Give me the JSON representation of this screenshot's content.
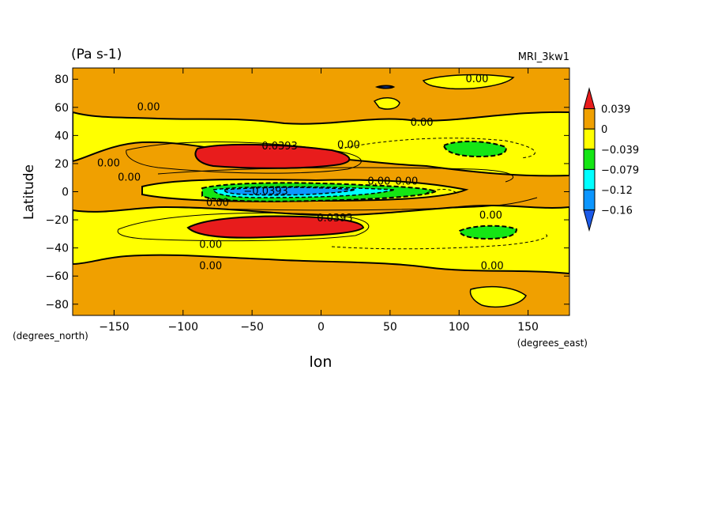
{
  "chart_data": {
    "type": "heatmap",
    "subtype": "filled-contour",
    "units_label": "(Pa s-1)",
    "model_label": "MRI_3kw1",
    "xlabel": "lon",
    "ylabel": "Latitude",
    "x_unit": "(degrees_east)",
    "y_unit": "(degrees_north)",
    "xlim": [
      -180,
      180
    ],
    "ylim": [
      -88,
      88
    ],
    "x_ticks": [
      -150,
      -100,
      -50,
      0,
      50,
      100,
      150
    ],
    "y_ticks": [
      80,
      60,
      40,
      20,
      0,
      -20,
      -40,
      -60,
      -80
    ],
    "x_tick_labels": [
      "−150",
      "−100",
      "−50",
      "0",
      "50",
      "100",
      "150"
    ],
    "y_tick_labels": [
      "80",
      "60",
      "40",
      "20",
      "0",
      "−20",
      "−40",
      "−60",
      "−80"
    ],
    "colorbar": {
      "labels": [
        "0.039",
        "0",
        "−0.039",
        "−0.079",
        "−0.12",
        "−0.16"
      ],
      "colors": [
        "#e81c1c",
        "#f0a000",
        "#ffff00",
        "#14e614",
        "#00ffff",
        "#0c96ff",
        "#1c5ae8"
      ]
    },
    "contour_labels": [
      {
        "text": "0.00",
        "lon": 113,
        "lat": 78
      },
      {
        "text": "0.00",
        "lon": -125,
        "lat": 58
      },
      {
        "text": "0.00",
        "lon": 73,
        "lat": 47
      },
      {
        "text": "0.0393",
        "lon": -30,
        "lat": 30
      },
      {
        "text": "0.00",
        "lon": 20,
        "lat": 31
      },
      {
        "text": "0.00",
        "lon": -154,
        "lat": 18
      },
      {
        "text": "0.00",
        "lon": -139,
        "lat": 8
      },
      {
        "text": "0.00",
        "lon": 42,
        "lat": 5
      },
      {
        "text": "0.00",
        "lon": 62,
        "lat": 5
      },
      {
        "text": "−0.0393",
        "lon": -40,
        "lat": -2
      },
      {
        "text": "0.00",
        "lon": -75,
        "lat": -10
      },
      {
        "text": "0.0393",
        "lon": 10,
        "lat": -21
      },
      {
        "text": "0.00",
        "lon": 123,
        "lat": -19
      },
      {
        "text": "0.00",
        "lon": -80,
        "lat": -40
      },
      {
        "text": "0.00",
        "lon": -80,
        "lat": -55
      },
      {
        "text": "0.00",
        "lon": 124,
        "lat": -55
      }
    ]
  }
}
